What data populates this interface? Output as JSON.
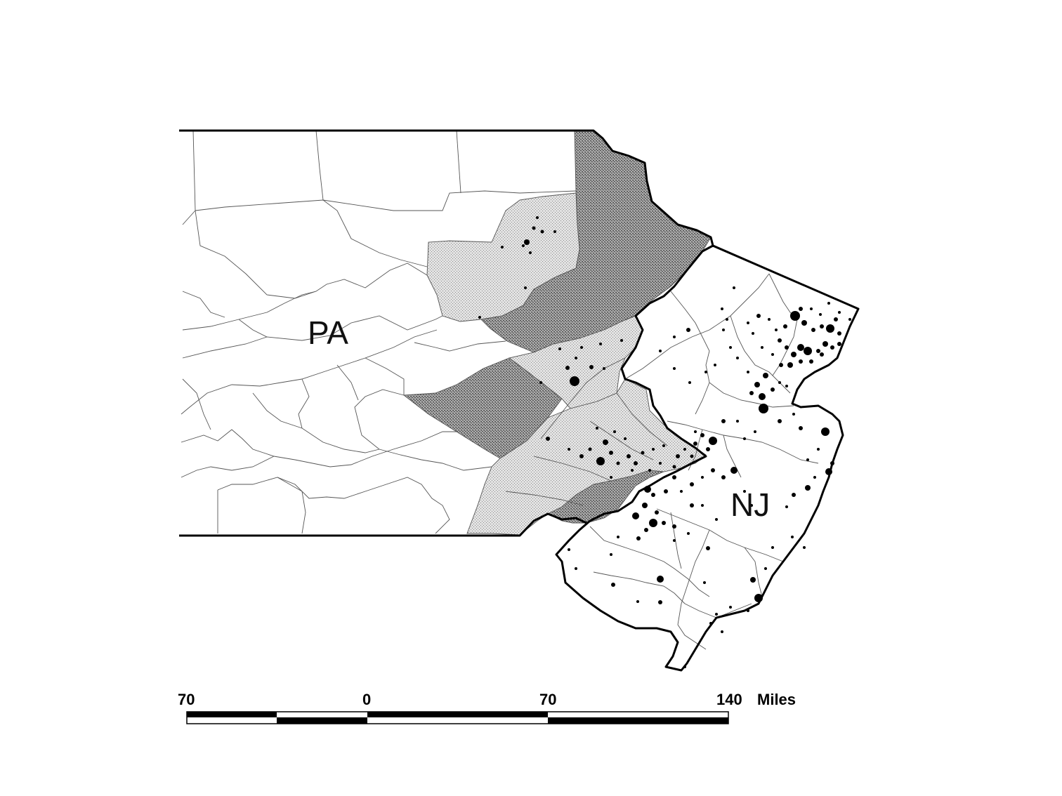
{
  "map": {
    "state_labels": {
      "pa": "PA",
      "nj": "NJ"
    },
    "scale_bar": {
      "labels": [
        "70",
        "0",
        "70",
        "140"
      ],
      "unit": "Miles"
    },
    "colors": {
      "background": "#ffffff",
      "county_fill_none": "#ffffff",
      "county_fill_light": "#d6d6d6",
      "county_fill_dark": "#8f8f8f",
      "county_border": "#555555",
      "state_border": "#000000",
      "site_dot": "#000000"
    },
    "symbol": {
      "site_marker": "filled-circle"
    }
  }
}
